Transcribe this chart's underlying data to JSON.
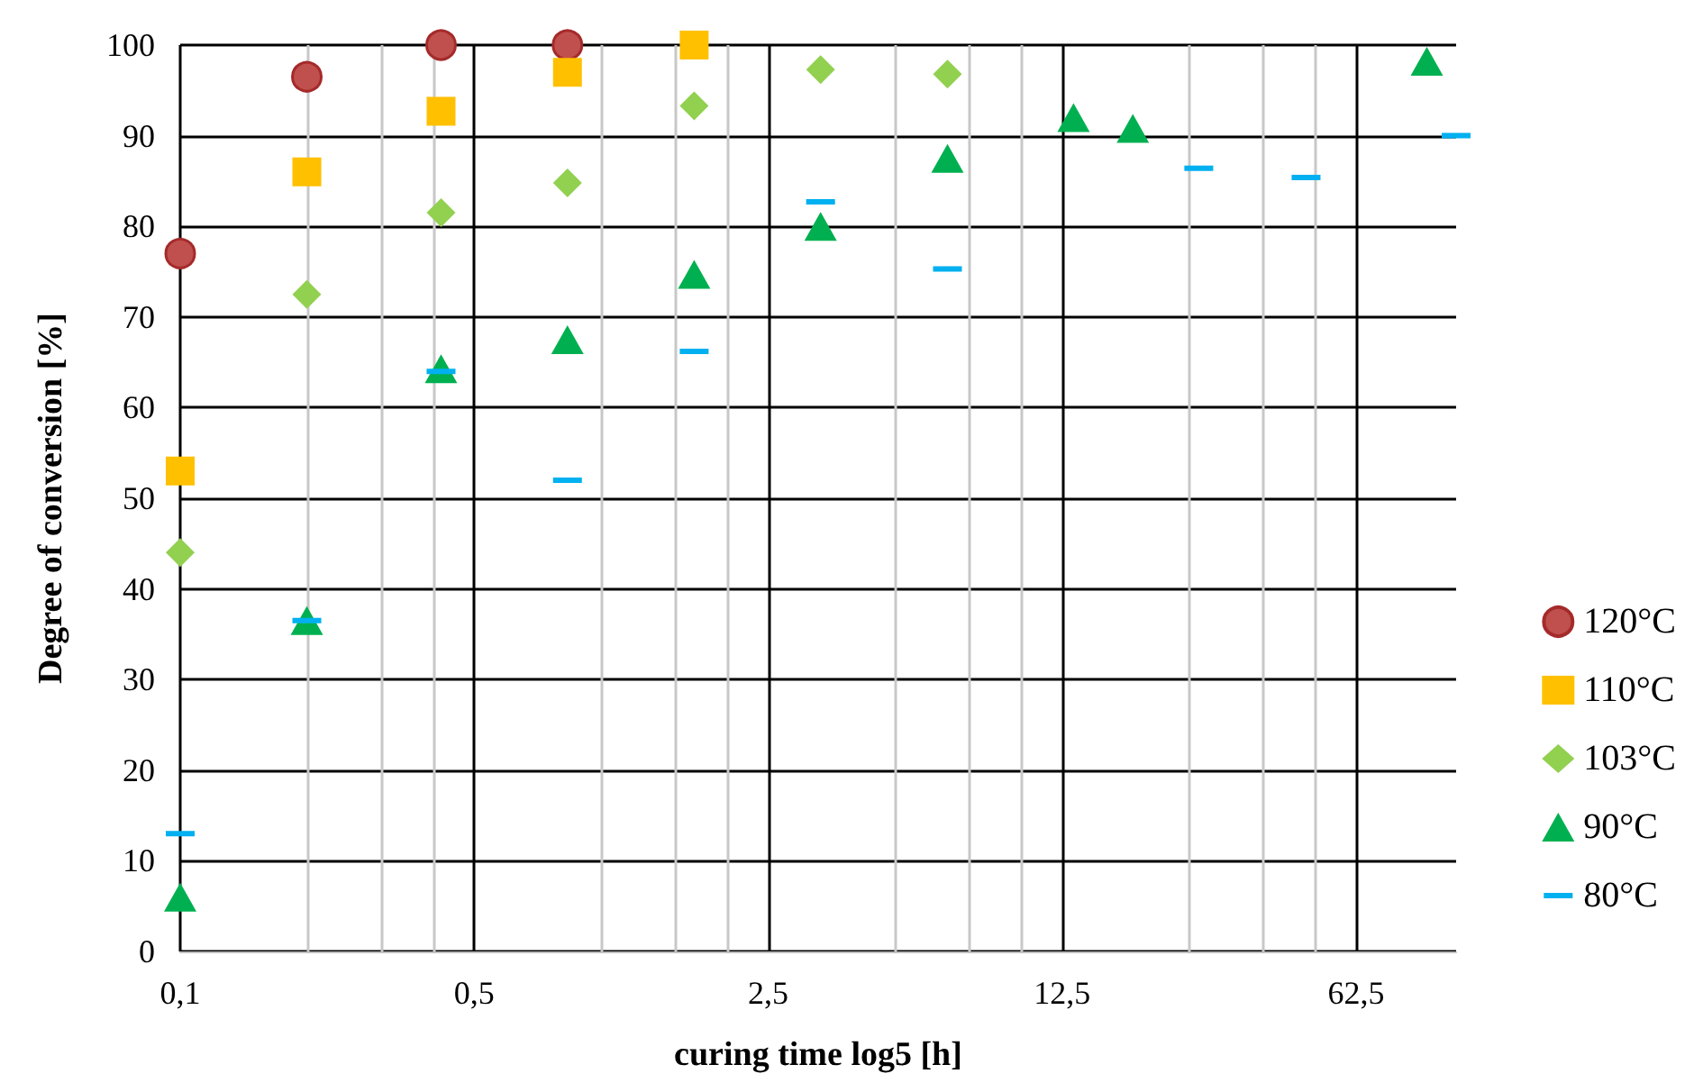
{
  "chart_data": {
    "type": "scatter",
    "xlabel": "curing time log5 [h]",
    "ylabel": "Degree of conversion [%]",
    "log": "x",
    "grid": true,
    "legend": "right",
    "xlim": [
      0.1,
      108
    ],
    "ylim": [
      0,
      100
    ],
    "xticks": [
      {
        "value": 0.1,
        "label": "0,1"
      },
      {
        "value": 0.2,
        "label": null
      },
      {
        "value": 0.3,
        "label": null
      },
      {
        "value": 0.4,
        "label": null
      },
      {
        "value": 0.5,
        "label": "0,5"
      },
      {
        "value": 1,
        "label": null
      },
      {
        "value": 1.5,
        "label": null
      },
      {
        "value": 2,
        "label": null
      },
      {
        "value": 2.5,
        "label": "2,5"
      },
      {
        "value": 5,
        "label": null
      },
      {
        "value": 7.5,
        "label": null
      },
      {
        "value": 10,
        "label": null
      },
      {
        "value": 12.5,
        "label": "12,5"
      },
      {
        "value": 25,
        "label": null
      },
      {
        "value": 37.5,
        "label": null
      },
      {
        "value": 50,
        "label": null
      },
      {
        "value": 62.5,
        "label": "62,5"
      }
    ],
    "yticks": [
      0,
      10,
      20,
      30,
      40,
      50,
      60,
      70,
      80,
      90,
      100
    ],
    "series": [
      {
        "name": "120°C",
        "color": "#c0504d",
        "marker": "circle",
        "x": [
          0.1,
          0.2,
          0.417,
          0.833
        ],
        "values": [
          77,
          96.5,
          100,
          100
        ]
      },
      {
        "name": "110°C",
        "color": "#ffc000",
        "marker": "square",
        "x": [
          0.1,
          0.2,
          0.417,
          0.833,
          1.667
        ],
        "values": [
          53,
          86,
          92.7,
          97,
          100
        ]
      },
      {
        "name": "103°C",
        "color": "#92d050",
        "marker": "diamond",
        "x": [
          0.1,
          0.2,
          0.417,
          0.833,
          1.667,
          3.33,
          6.67
        ],
        "values": [
          44,
          72.5,
          81.5,
          84.8,
          93.3,
          97.3,
          96.8
        ]
      },
      {
        "name": "90°C",
        "color": "#00b050",
        "marker": "triangle",
        "x": [
          0.1,
          0.2,
          0.417,
          0.833,
          1.667,
          3.33,
          6.67,
          13.3,
          18.4,
          92
        ],
        "values": [
          6,
          36.5,
          64.3,
          67.5,
          74.7,
          80,
          87.5,
          92,
          90.8,
          98.2
        ]
      },
      {
        "name": "80°C",
        "color": "#00b0f0",
        "x": [
          0.1,
          0.2,
          0.417,
          0.833,
          1.667,
          3.33,
          6.67,
          26.4,
          47.5,
          108
        ],
        "values": [
          13,
          36.5,
          64,
          52,
          66.2,
          82.7,
          75.3,
          86.4,
          85.4,
          90
        ]
      }
    ]
  }
}
